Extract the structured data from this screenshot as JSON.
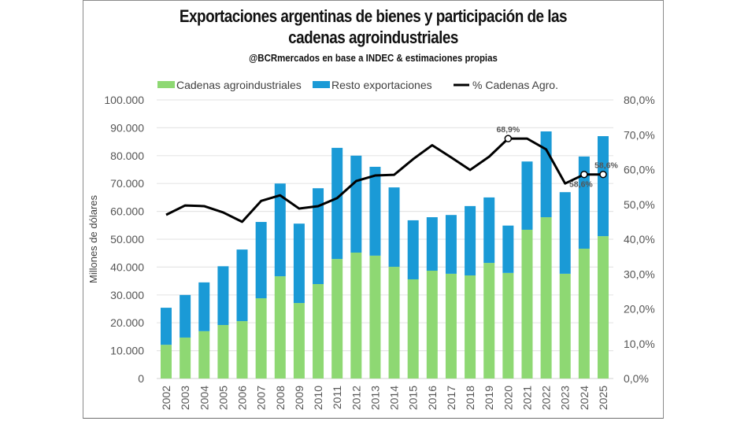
{
  "chart_data": {
    "type": "bar",
    "stacked": true,
    "title": "Exportaciones argentinas de bienes y participación de las cadenas agroindustriales",
    "title_line1": "Exportaciones argentinas de bienes y participación de las",
    "title_line2": "cadenas agroindustriales",
    "subtitle": "@BCRmercados en base a INDEC & estimaciones propias",
    "xlabel": "",
    "ylabel": "Millones de dólares",
    "ylabel_right": "",
    "ylim": [
      0,
      100000
    ],
    "ylim_right": [
      0,
      80
    ],
    "yticks": [
      "0",
      "10.000",
      "20.000",
      "30.000",
      "40.000",
      "50.000",
      "60.000",
      "70.000",
      "80.000",
      "90.000",
      "100.000"
    ],
    "yticks_right": [
      "0,0%",
      "10,0%",
      "20,0%",
      "30,0%",
      "40,0%",
      "50,0%",
      "60,0%",
      "70,0%",
      "80,0%"
    ],
    "grid": true,
    "legend_position": "top",
    "categories": [
      "2002",
      "2003",
      "2004",
      "2005",
      "2006",
      "2007",
      "2008",
      "2009",
      "2010",
      "2011",
      "2012",
      "2013",
      "2014",
      "2015",
      "2016",
      "2017",
      "2018",
      "2019",
      "2020",
      "2021",
      "2022",
      "2023",
      "2024",
      "2025"
    ],
    "series": [
      {
        "name": "Cadenas agroindustriales",
        "type": "bar",
        "axis": "left",
        "color": "#8ed873",
        "values": [
          12100,
          14700,
          17000,
          19200,
          20600,
          28800,
          36700,
          27100,
          33900,
          42900,
          45200,
          44100,
          40100,
          35600,
          38700,
          37600,
          37000,
          41500,
          37900,
          53400,
          57900,
          37600,
          46600,
          51100
        ]
      },
      {
        "name": "Resto exportaciones",
        "type": "bar",
        "axis": "left",
        "color": "#1a9ad6",
        "values": [
          13300,
          15300,
          17500,
          21100,
          25700,
          27400,
          33300,
          28500,
          34400,
          39900,
          34800,
          31900,
          28500,
          21200,
          19200,
          21100,
          24900,
          23500,
          17000,
          24500,
          30800,
          29300,
          33100,
          35900
        ]
      },
      {
        "name": "% Cadenas Agro.",
        "type": "line",
        "axis": "right",
        "color": "#000000",
        "values": [
          47.0,
          49.7,
          49.5,
          47.7,
          45.0,
          51.0,
          52.6,
          48.8,
          49.5,
          51.8,
          56.7,
          58.3,
          58.5,
          63.0,
          67.0,
          63.5,
          59.9,
          63.7,
          68.9,
          68.9,
          65.8,
          56.0,
          58.6,
          58.6
        ]
      }
    ],
    "annotations": [
      {
        "category": "2020",
        "text": "68,9%",
        "placement": "above"
      },
      {
        "category": "2024",
        "text": "58,6%",
        "placement": "below"
      },
      {
        "category": "2025",
        "text": "58,6%",
        "placement": "above"
      }
    ]
  }
}
